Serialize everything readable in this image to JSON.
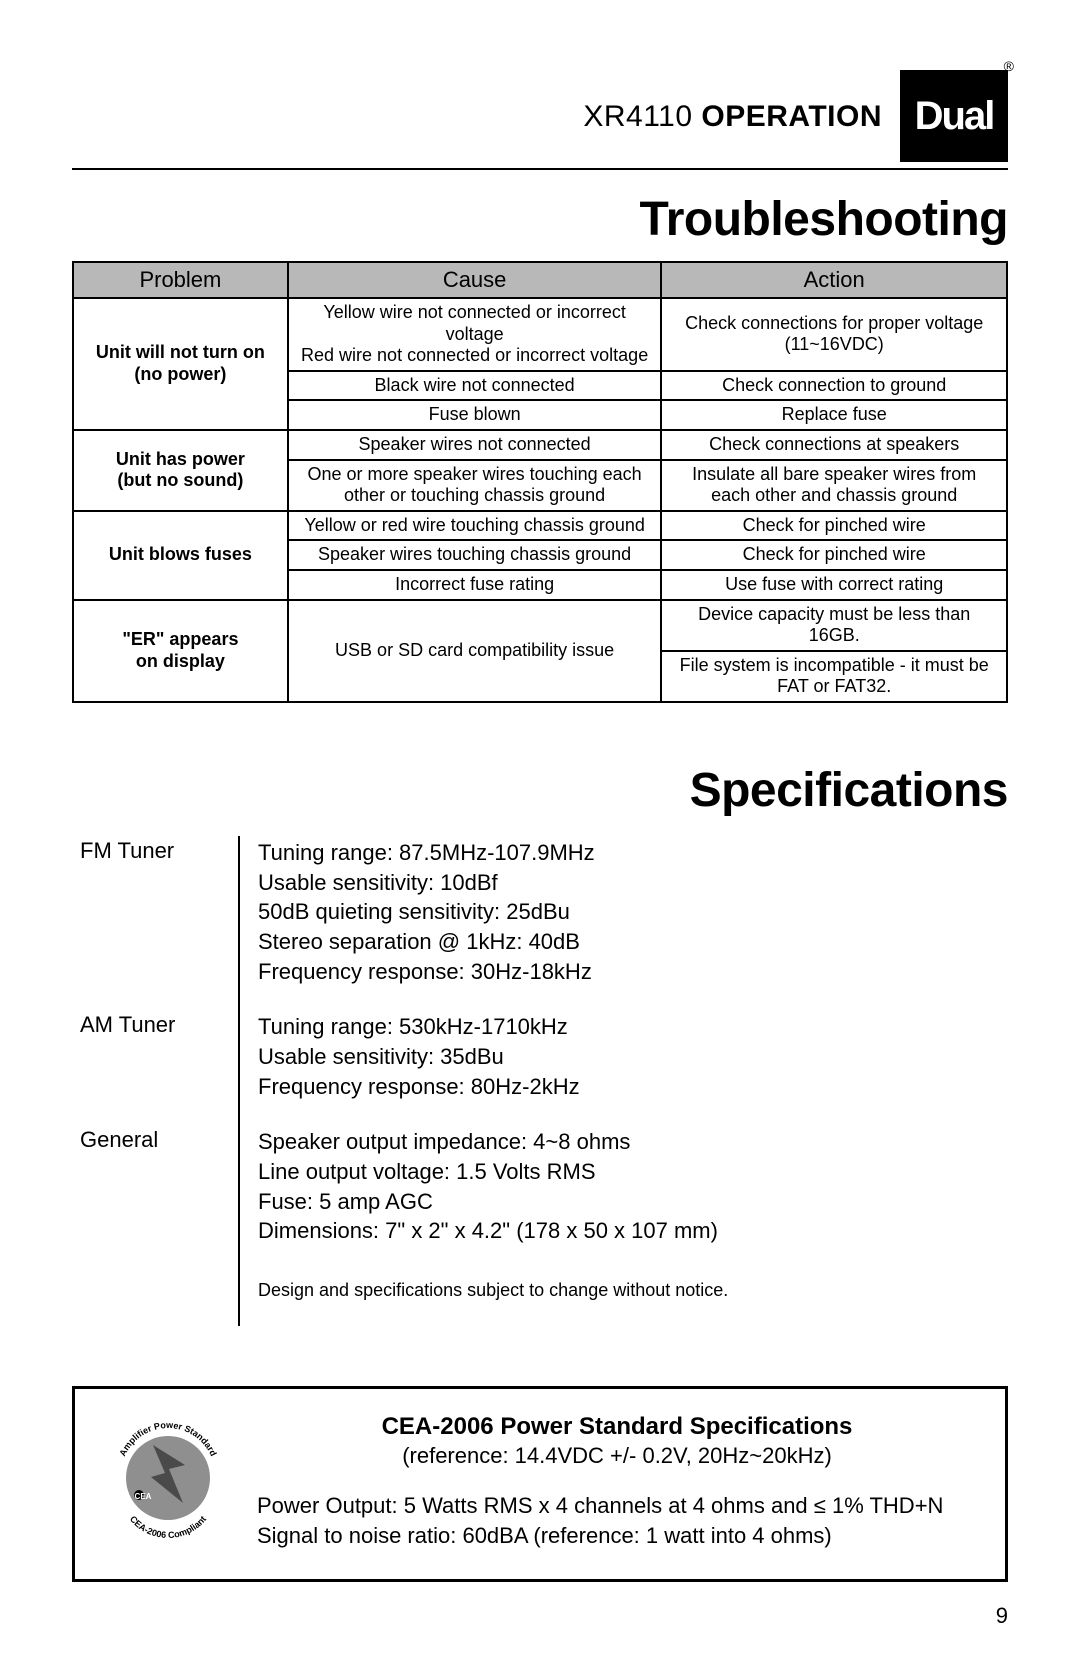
{
  "header": {
    "model": "XR4110",
    "section": "OPERATION",
    "logo_text": "Dual",
    "registered": "®"
  },
  "troubleshooting": {
    "title": "Troubleshooting",
    "columns": [
      "Problem",
      "Cause",
      "Action"
    ],
    "header_bg": "#b9b8b8",
    "rows": [
      {
        "problem": "Unit will not turn on\n(no power)",
        "pairs": [
          {
            "cause": "Yellow wire not connected or incorrect voltage\nRed wire not connected or incorrect voltage",
            "action": "Check connections for proper voltage (11~16VDC)"
          },
          {
            "cause": "Black wire not connected",
            "action": "Check connection to ground"
          },
          {
            "cause": "Fuse blown",
            "action": "Replace fuse"
          }
        ]
      },
      {
        "problem": "Unit has power\n(but no sound)",
        "pairs": [
          {
            "cause": "Speaker wires not connected",
            "action": "Check connections at speakers"
          },
          {
            "cause": "One or more speaker wires touching each other or touching chassis ground",
            "action": "Insulate all bare speaker wires from each other and chassis ground"
          }
        ]
      },
      {
        "problem": "Unit blows fuses",
        "pairs": [
          {
            "cause": "Yellow or red wire touching chassis ground",
            "action": "Check for pinched wire"
          },
          {
            "cause": "Speaker wires touching chassis ground",
            "action": "Check for pinched wire"
          },
          {
            "cause": "Incorrect fuse rating",
            "action": "Use fuse with correct rating"
          }
        ]
      },
      {
        "problem": "\"ER\" appears\non display",
        "pairs": [
          {
            "cause": "USB or SD card compatibility issue",
            "cause_rowspan": 2,
            "action": "Device capacity must be less than 16GB."
          },
          {
            "action": "File system is incompatible - it must be FAT or FAT32."
          }
        ]
      }
    ]
  },
  "specs": {
    "title": "Specifications",
    "groups": [
      {
        "label": "FM Tuner",
        "lines": [
          "Tuning range:  87.5MHz-107.9MHz",
          "Usable sensitivity:  10dBf",
          "50dB quieting sensitivity:  25dBu",
          "Stereo separation @ 1kHz:  40dB",
          "Frequency response:  30Hz-18kHz"
        ]
      },
      {
        "label": "AM Tuner",
        "lines": [
          "Tuning range:  530kHz-1710kHz",
          "Usable sensitivity:  35dBu",
          "Frequency response:  80Hz-2kHz"
        ]
      },
      {
        "label": "General",
        "lines": [
          "Speaker output impedance:  4~8 ohms",
          "Line output voltage: 1.5 Volts RMS",
          "Fuse:  5 amp AGC",
          "Dimensions:  7\" x 2\" x 4.2\" (178 x 50 x 107 mm)"
        ]
      }
    ],
    "note": "Design and specifications subject to change without notice."
  },
  "cea": {
    "title": "CEA-2006 Power Standard Specifications",
    "reference": "(reference: 14.4VDC +/- 0.2V, 20Hz~20kHz)",
    "power_output": "Power Output: 5 Watts RMS x 4 channels at 4 ohms and ≤ 1% THD+N",
    "snr": "Signal to noise ratio: 60dBA (reference: 1 watt into 4 ohms)",
    "badge": {
      "top_text": "Amplifier Power Standard",
      "bottom_text": "CEA-2006 Compliant",
      "prefix": "CEA",
      "circle_fill": "#8f8f8f",
      "bolt_fill": "#4a4a4a"
    }
  },
  "page_number": "9"
}
